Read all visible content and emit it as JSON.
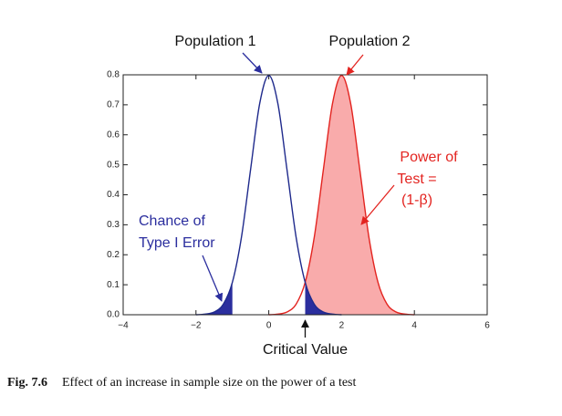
{
  "chart_data": {
    "type": "line",
    "x_axis_label": "Critical Value",
    "caption_label": "Fig. 7.6",
    "caption": "Effect of an increase in sample size on the power of a test",
    "series": [
      {
        "name": "Population 1",
        "color": "#1f2a8c",
        "fill": "#2b2e9e",
        "x": [
          -2,
          -1.75,
          -1.5,
          -1.25,
          -1,
          -0.75,
          -0.5,
          -0.25,
          0,
          0.25,
          0.5,
          0.75,
          1,
          1.25,
          1.5,
          1.75,
          2
        ],
        "values": [
          0.0,
          0.002,
          0.009,
          0.035,
          0.108,
          0.259,
          0.484,
          0.704,
          0.798,
          0.704,
          0.484,
          0.259,
          0.108,
          0.035,
          0.009,
          0.002,
          0.0
        ]
      },
      {
        "name": "Population 2",
        "color": "#e32420",
        "fill": "#f9abab",
        "x": [
          0,
          0.25,
          0.5,
          0.75,
          1,
          1.25,
          1.5,
          1.75,
          2,
          2.25,
          2.5,
          2.75,
          3,
          3.25,
          3.5,
          3.75,
          4
        ],
        "values": [
          0.0,
          0.002,
          0.009,
          0.035,
          0.108,
          0.259,
          0.484,
          0.704,
          0.798,
          0.704,
          0.484,
          0.259,
          0.108,
          0.035,
          0.009,
          0.002,
          0.0
        ]
      }
    ],
    "critical_value": 1,
    "lower_tail_cutoff": -1,
    "annotations": [
      {
        "lines": [
          "Chance of",
          "Type I Error"
        ],
        "color": "#2b2e9e"
      },
      {
        "lines": [
          "Power of",
          "Test =",
          "(1-β)"
        ],
        "color": "#e32420"
      }
    ],
    "xlim": [
      -4,
      6
    ],
    "xticks": [
      {
        "value": -4,
        "label": "−4"
      },
      {
        "value": -2,
        "label": "−2"
      },
      0,
      2,
      4,
      6
    ],
    "ylim": [
      0,
      0.8
    ],
    "yticks": [
      {
        "value": 0,
        "label": "0.0"
      },
      0.1,
      0.2,
      0.3,
      0.4,
      0.5,
      0.6,
      0.7,
      0.8
    ]
  }
}
